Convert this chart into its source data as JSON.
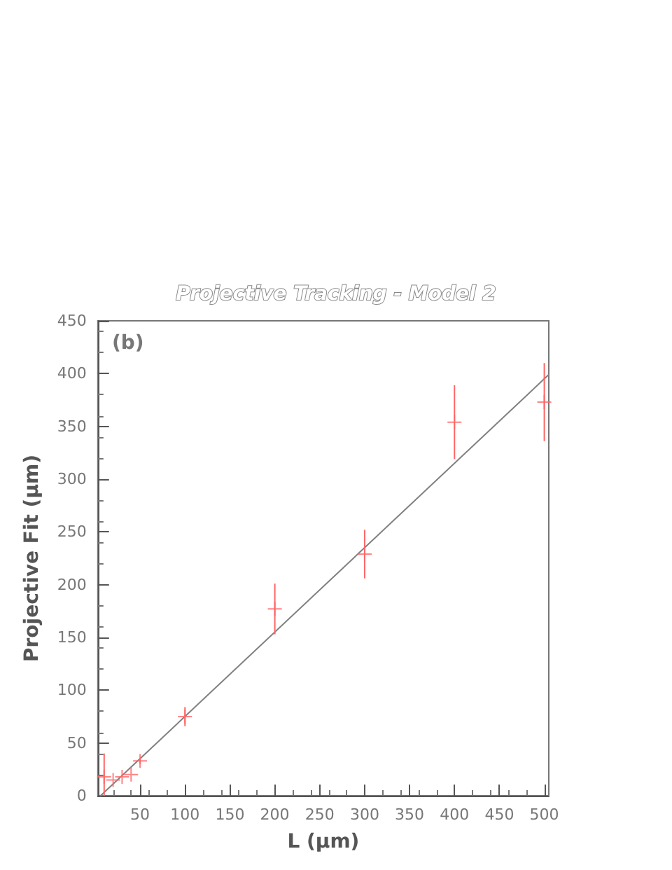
{
  "chart_data": {
    "type": "scatter",
    "title": "Projective Tracking - Model 2",
    "xlabel": "L (μm)",
    "ylabel": "Projective Fit (μm)",
    "annotations": [
      "(b)"
    ],
    "xlim": [
      3,
      505
    ],
    "xticks": [
      50,
      100,
      150,
      200,
      250,
      300,
      350,
      400,
      450,
      500
    ],
    "ylim": [
      0,
      450
    ],
    "yticks": [
      0,
      50,
      100,
      150,
      200,
      250,
      300,
      350,
      400,
      450
    ],
    "grid": false,
    "marker": "cross",
    "series": [
      {
        "color": "#ff6666",
        "x": [
          10,
          20,
          30,
          40,
          50,
          100,
          200,
          300,
          400,
          500
        ],
        "values": [
          18,
          15,
          18,
          20,
          33,
          75,
          177,
          229,
          354,
          373
        ],
        "errors": [
          [
            0,
            40
          ],
          null,
          null,
          null,
          3,
          9,
          24,
          23,
          35,
          37
        ]
      },
      {
        "type": "line",
        "color": "#808080",
        "x": [
          6,
          505
        ],
        "values": [
          0,
          399
        ],
        "line_style": "solid",
        "marker": "none"
      }
    ]
  }
}
